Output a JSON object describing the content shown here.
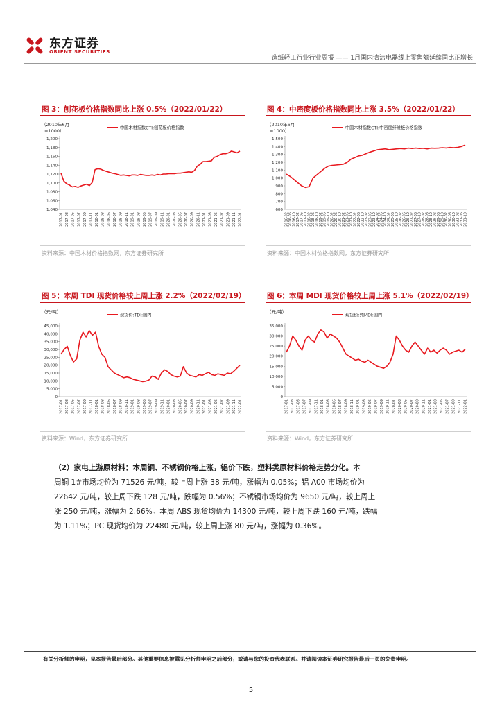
{
  "header": {
    "brand_cn": "东方证券",
    "brand_en": "ORIENT SECURITIES",
    "report_title": "造纸轻工行业行业周报 —— 1月国内清洁电器线上零售额延续同比正增长",
    "logo_color": "#c8161d"
  },
  "figures": [
    {
      "title": "图 3：刨花板价格指数同比上涨 0.5%（2022/01/22）",
      "source": "资料来源：中国木材价格指数网，东方证券研究所",
      "unit_label_1": "（2010年6月",
      "unit_label_2": "=1000）",
      "legend": "中国木材指数CTI:刨花板价格指数",
      "line_color": "#e8191f",
      "chart_data": {
        "type": "line",
        "y_ticks": [
          "1,200",
          "1,180",
          "1,160",
          "1,140",
          "1,120",
          "1,100",
          "1,080",
          "1,060",
          "1,040"
        ],
        "ylim": [
          1040,
          1200
        ],
        "x_ticks": [
          "2017-01",
          "2017-03",
          "2017-05",
          "2017-07",
          "2017-09",
          "2017-11",
          "2018-01",
          "2018-03",
          "2018-05",
          "2018-07",
          "2018-09",
          "2018-11",
          "2019-01",
          "2019-03",
          "2019-05",
          "2019-07",
          "2019-09",
          "2019-11",
          "2020-01",
          "2020-03",
          "2020-05",
          "2020-07",
          "2020-09",
          "2020-11",
          "2021-01",
          "2021-03",
          "2021-05",
          "2021-07",
          "2021-09",
          "2021-11",
          "2022-01"
        ],
        "values": [
          1122,
          1104,
          1098,
          1095,
          1091,
          1092,
          1090,
          1093,
          1095,
          1097,
          1094,
          1101,
          1130,
          1132,
          1131,
          1128,
          1126,
          1124,
          1122,
          1121,
          1119,
          1117,
          1118,
          1117,
          1116,
          1118,
          1118,
          1117,
          1119,
          1118,
          1117,
          1117,
          1118,
          1117,
          1119,
          1118,
          1120,
          1120,
          1121,
          1121,
          1121,
          1122,
          1122,
          1123,
          1124,
          1125,
          1124,
          1128,
          1138,
          1142,
          1148,
          1148,
          1149,
          1150,
          1158,
          1160,
          1164,
          1166,
          1166,
          1168,
          1172,
          1170,
          1168,
          1172
        ]
      }
    },
    {
      "title": "图 4：中密度板价格指数同比上涨 3.5%（2022/01/22）",
      "source": "资料来源：中国木材价格指数网，东方证券研究所",
      "unit_label_1": "（2010年6月",
      "unit_label_2": "=1000）",
      "legend": "中国木材指数CTI:中密度纤维板价格指数",
      "line_color": "#e8191f",
      "chart_data": {
        "type": "line",
        "y_ticks": [
          "1,500",
          "1,400",
          "1,300",
          "1,200",
          "1,100",
          "1,000",
          "900",
          "800",
          "700",
          "600"
        ],
        "ylim": [
          600,
          1500
        ],
        "x_ticks": [
          "2016-02",
          "2016-06",
          "2016-10",
          "2017-02",
          "2017-06",
          "2017-10",
          "2018-02",
          "2018-06",
          "2018-10",
          "2019-02",
          "2019-06",
          "2019-10",
          "2020-02",
          "2020-06",
          "2020-10",
          "2021-02",
          "2021-06",
          "2021-10",
          "2022-02",
          "2022-06",
          "2022-10",
          "2023-02",
          "2023-06",
          "2023-10",
          "2024-02",
          "2024-06",
          "2024-10",
          "2025-02",
          "2025-06",
          "2025-10",
          "2026-02",
          "2026-06",
          "2026-10",
          "2027-02",
          "2027-06",
          "2027-10",
          "2028-02",
          "2028-06",
          "2028-10",
          "2029-02",
          "2029-06",
          "2029-10",
          "2030-02",
          "2030-06",
          "2030-10",
          "2031-02",
          "2031-06",
          "2031-10"
        ],
        "values": [
          1050,
          1020,
          980,
          940,
          900,
          880,
          890,
          1000,
          1040,
          1080,
          1120,
          1150,
          1160,
          1165,
          1170,
          1175,
          1200,
          1240,
          1260,
          1280,
          1290,
          1310,
          1330,
          1345,
          1360,
          1365,
          1370,
          1360,
          1365,
          1370,
          1375,
          1370,
          1380,
          1375,
          1380,
          1375,
          1378,
          1370,
          1380,
          1378,
          1380,
          1385,
          1382,
          1388,
          1385,
          1390,
          1400,
          1420
        ]
      }
    },
    {
      "title": "图 5：本周 TDI 现货价格较上周上涨 2.2%（2022/02/19）",
      "source": "资料来源：Wind，东方证券研究所",
      "unit_label_1": "（元/吨）",
      "unit_label_2": "",
      "legend": "现货价:TDI:国内",
      "line_color": "#e8191f",
      "chart_data": {
        "type": "line",
        "y_ticks": [
          "45,000",
          "40,000",
          "35,000",
          "30,000",
          "25,000",
          "20,000",
          "15,000",
          "10,000",
          "5,000",
          "0"
        ],
        "ylim": [
          0,
          45000
        ],
        "x_ticks": [
          "2017-01",
          "2017-03",
          "2017-05",
          "2017-07",
          "2017-09",
          "2017-11",
          "2018-01",
          "2018-03",
          "2018-05",
          "2018-07",
          "2018-09",
          "2018-11",
          "2019-01",
          "2019-03",
          "2019-05",
          "2019-07",
          "2019-09",
          "2019-11",
          "2020-01",
          "2020-03",
          "2020-05",
          "2020-07",
          "2020-09",
          "2020-11",
          "2021-01",
          "2021-03",
          "2021-05",
          "2021-07",
          "2021-09",
          "2021-11",
          "2022-01"
        ],
        "values": [
          27000,
          30000,
          32000,
          26000,
          22000,
          24000,
          36000,
          41000,
          38000,
          42000,
          39000,
          41000,
          32000,
          27000,
          25000,
          19000,
          17000,
          15000,
          14000,
          13000,
          12000,
          12500,
          12000,
          11000,
          10500,
          10000,
          9500,
          9800,
          10500,
          13000,
          12500,
          11000,
          15000,
          17000,
          16000,
          14000,
          13000,
          12500,
          13000,
          19000,
          15000,
          13500,
          13000,
          12500,
          14000,
          13500,
          14500,
          15500,
          14000,
          13500,
          14500,
          14000,
          13500,
          15000,
          14500,
          16000,
          18000,
          20000
        ]
      }
    },
    {
      "title": "图 6：本周 MDI 现货价格较上周上涨 5.1%（2022/02/19）",
      "source": "资料来源：Wind，东方证券研究所",
      "unit_label_1": "（元/吨）",
      "unit_label_2": "",
      "legend": "现货价:纯MDI:国内",
      "line_color": "#e8191f",
      "chart_data": {
        "type": "line",
        "y_ticks": [
          "35,000",
          "30,000",
          "25,000",
          "20,000",
          "15,000",
          "10,000",
          "5,000",
          "0"
        ],
        "ylim": [
          0,
          35000
        ],
        "x_ticks": [
          "2017-01",
          "2017-03",
          "2017-05",
          "2017-07",
          "2017-09",
          "2017-11",
          "2018-01",
          "2018-03",
          "2018-05",
          "2018-07",
          "2018-09",
          "2018-11",
          "2019-01",
          "2019-03",
          "2019-05",
          "2019-07",
          "2019-09",
          "2019-11",
          "2020-01",
          "2020-03",
          "2020-05",
          "2020-07",
          "2020-09",
          "2020-11",
          "2021-01",
          "2021-03",
          "2021-05",
          "2021-07",
          "2021-09",
          "2021-11",
          "2022-01"
        ],
        "values": [
          22000,
          25000,
          30000,
          28000,
          25000,
          23000,
          28000,
          30000,
          28000,
          27000,
          31000,
          33000,
          32000,
          29000,
          31000,
          30000,
          29000,
          27000,
          24000,
          21000,
          20000,
          19000,
          18000,
          18500,
          17500,
          17000,
          18000,
          17000,
          16000,
          15000,
          14500,
          14000,
          15000,
          17000,
          21000,
          30000,
          28000,
          25000,
          23000,
          22000,
          25000,
          27000,
          25000,
          23000,
          21000,
          24000,
          22000,
          23000,
          21500,
          23000,
          24000,
          23000,
          21000,
          22000,
          22500,
          23000,
          22000,
          23500
        ]
      }
    }
  ],
  "body": {
    "line1_label": "（2）家电上游原材料：",
    "line1_bold": "本周铜、不锈钢价格上涨，铝价下跌，塑料类原材料价格走势分化。",
    "line1_end": "本",
    "line2": "周铜 1#市场均价为 71526 元/吨，较上周上涨 38 元/吨，涨幅为 0.05%；铝 A00 市场均价为",
    "line3": "22642 元/吨，较上周下跌 128 元/吨，跌幅为 0.56%；不锈钢市场均价为 9650 元/吨，较上周上",
    "line4": "涨 250 元/吨，涨幅为 2.66%。本周 ABS 现货均价为 14300 元/吨，较上周下跌 160 元/吨，跌幅",
    "line5": "为 1.11%；PC 现货均价为 22480 元/吨，较上周上涨 80 元/吨，涨幅为 0.36%。"
  },
  "footer": {
    "note": "有关分析师的申明，见本报告最后部分。其他重要信息披露见分析师申明之后部分，或请与您的投资代表联系。并请阅读本证券研究报告最后一页的免责申明。",
    "page_number": "5"
  }
}
